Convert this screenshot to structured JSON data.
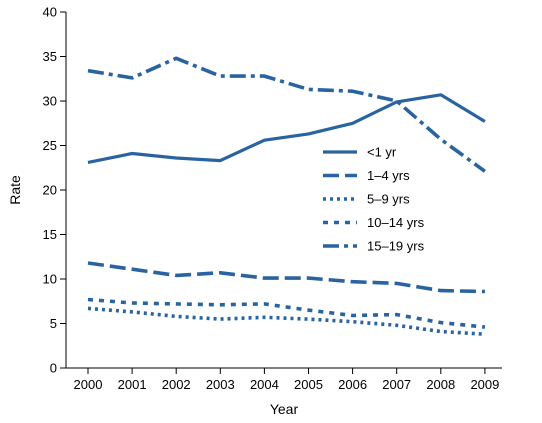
{
  "chart_data": {
    "type": "line",
    "title": "",
    "xlabel": "Year",
    "ylabel": "Rate",
    "categories": [
      "2000",
      "2001",
      "2002",
      "2003",
      "2004",
      "2005",
      "2006",
      "2007",
      "2008",
      "2009"
    ],
    "ylim": [
      0,
      40
    ],
    "yticks": [
      0,
      5,
      10,
      15,
      20,
      25,
      30,
      35,
      40
    ],
    "grid": false,
    "legend_position": "right",
    "series_color": "#2a64a0",
    "series": [
      {
        "name": "<1 yr",
        "style": "solid",
        "values": [
          23.1,
          24.1,
          23.6,
          23.3,
          25.6,
          26.3,
          27.5,
          29.9,
          30.7,
          27.7
        ]
      },
      {
        "name": "1–4 yrs",
        "style": "long-dash",
        "values": [
          11.8,
          11.1,
          10.4,
          10.7,
          10.1,
          10.1,
          9.7,
          9.5,
          8.7,
          8.6
        ]
      },
      {
        "name": "5–9 yrs",
        "style": "dotted",
        "values": [
          6.7,
          6.3,
          5.8,
          5.5,
          5.7,
          5.5,
          5.2,
          4.8,
          4.1,
          3.8
        ]
      },
      {
        "name": "10–14 yrs",
        "style": "square-dot",
        "values": [
          7.7,
          7.3,
          7.2,
          7.1,
          7.2,
          6.5,
          5.9,
          6.0,
          5.1,
          4.6
        ]
      },
      {
        "name": "15–19 yrs",
        "style": "dash-dot",
        "values": [
          33.4,
          32.6,
          34.8,
          32.8,
          32.8,
          31.3,
          31.1,
          30.0,
          25.7,
          22.1
        ]
      }
    ]
  }
}
